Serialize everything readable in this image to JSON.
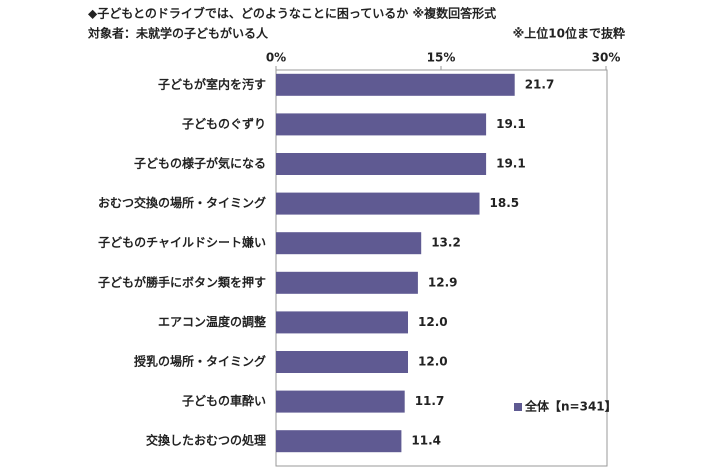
{
  "chart_data": {
    "type": "barh",
    "title": "◆子どもとのドライブでは、どのようなことに困っているか ※複数回答形式",
    "subtitle": "対象者：未就学の子どもがいる人",
    "note": "※上位10位まで抜粋",
    "categories": [
      "子どもが室内を汚す",
      "子どものぐずり",
      "子どもの様子が気になる",
      "おむつ交換の場所・タイミング",
      "子どものチャイルドシート嫌い",
      "子どもが勝手にボタン類を押す",
      "エアコン温度の調整",
      "授乳の場所・タイミング",
      "子どもの車酔い",
      "交換したおむつの処理"
    ],
    "series": [
      {
        "name": "全体【n=341】",
        "color": "#5f5a92",
        "values": [
          21.7,
          19.1,
          19.1,
          18.5,
          13.2,
          12.9,
          12.0,
          12.0,
          11.7,
          11.4
        ],
        "value_labels": [
          "21.7",
          "19.1",
          "19.1",
          "18.5",
          "13.2",
          "12.9",
          "12.0",
          "12.0",
          "11.7",
          "11.4"
        ]
      }
    ],
    "xlim": [
      0,
      30
    ],
    "xticks": [
      {
        "value": 0,
        "label": "0%"
      },
      {
        "value": 15,
        "label": "15%"
      },
      {
        "value": 30,
        "label": "30%"
      }
    ],
    "legend": "lower right"
  }
}
